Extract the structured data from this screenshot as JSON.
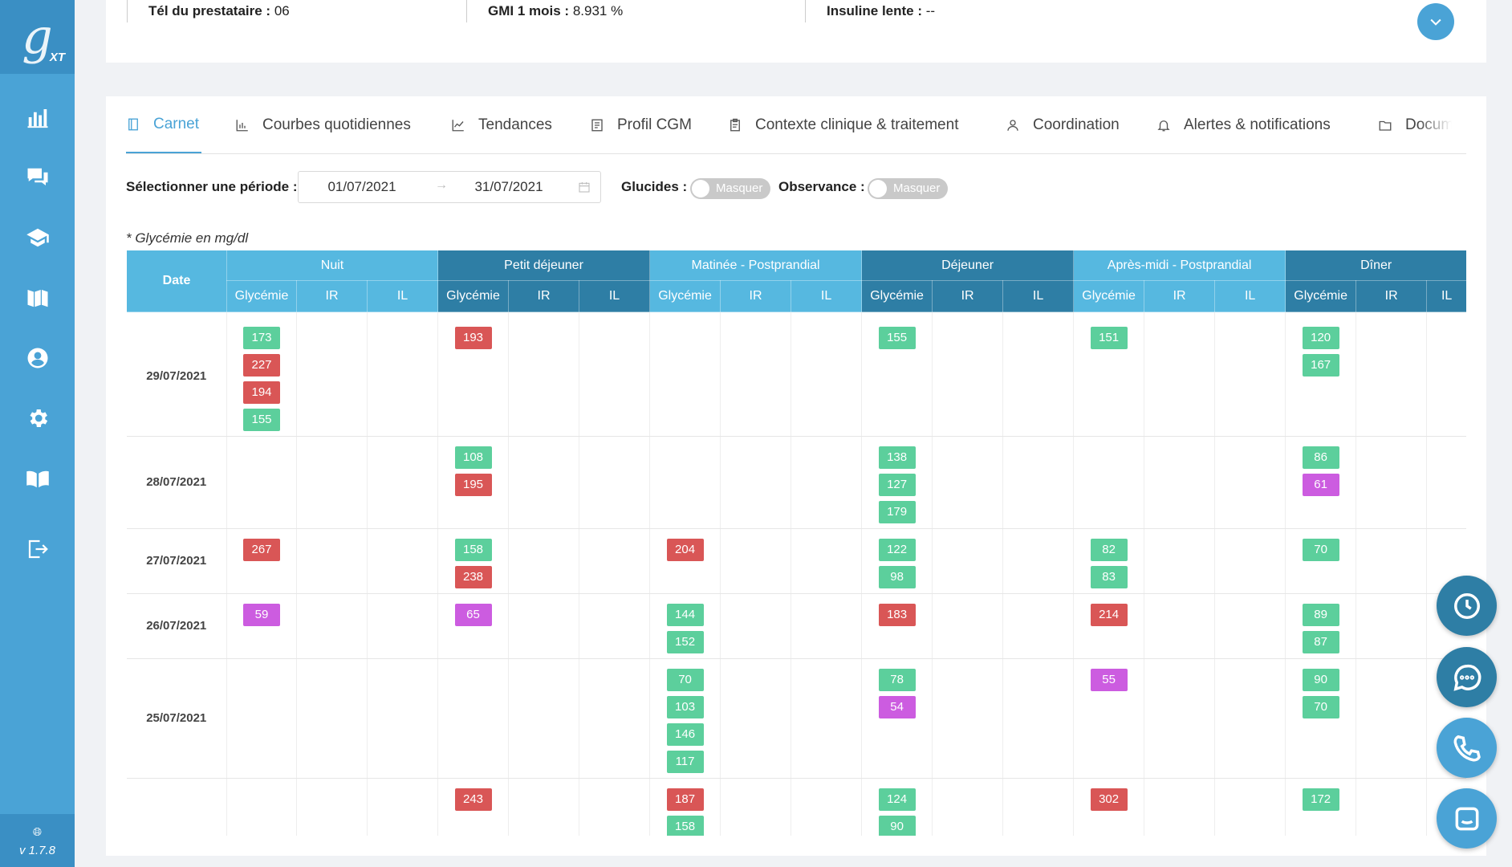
{
  "app": {
    "logo_letter": "g",
    "logo_suffix": "XT",
    "version": "v 1.7.8"
  },
  "sidebar": {
    "items": [
      {
        "icon": "bar-chart-icon"
      },
      {
        "icon": "chat-icon"
      },
      {
        "icon": "graduation-cap-icon"
      },
      {
        "icon": "library-icon"
      },
      {
        "icon": "user-circle-icon"
      },
      {
        "icon": "gear-icon"
      },
      {
        "icon": "book-open-icon"
      },
      {
        "icon": "logout-icon"
      }
    ]
  },
  "info": {
    "tel_label": "Tél du prestataire :",
    "tel_value": "06",
    "gmi_label": "GMI 1 mois :",
    "gmi_value": "8.931 %",
    "insulin_label": "Insuline lente :",
    "insulin_value": "--"
  },
  "tabs": [
    {
      "label": "Carnet",
      "icon": "notebook-icon",
      "active": true
    },
    {
      "label": "Courbes quotidiennes",
      "icon": "bar-chart-icon"
    },
    {
      "label": "Tendances",
      "icon": "line-chart-icon"
    },
    {
      "label": "Profil CGM",
      "icon": "list-icon"
    },
    {
      "label": "Contexte clinique & traitement",
      "icon": "clipboard-icon"
    },
    {
      "label": "Coordination",
      "icon": "user-icon"
    },
    {
      "label": "Alertes & notifications",
      "icon": "bell-icon"
    },
    {
      "label": "Documen",
      "icon": "folder-icon"
    }
  ],
  "filters": {
    "period_label": "Sélectionner une période :",
    "start_date": "01/07/2021",
    "end_date": "31/07/2021",
    "glucides_label": "Glucides :",
    "glucides_toggle": "Masquer",
    "observance_label": "Observance :",
    "observance_toggle": "Masquer"
  },
  "note": "* Glycémie en mg/dl",
  "colors": {
    "green": "#5ccf9c",
    "red": "#d95656",
    "purple": "#cc5ce0",
    "accent": "#4aa3d6",
    "header_dark": "#2e7ea5",
    "header_light": "#56b8e0"
  },
  "table": {
    "date_header": "Date",
    "groups": [
      "Nuit",
      "Petit déjeuner",
      "Matinée - Postprandial",
      "Déjeuner",
      "Après-midi - Postprandial",
      "Dîner"
    ],
    "sub_headers": [
      "Glycémie",
      "IR",
      "IL"
    ],
    "rows": [
      {
        "date": "29/07/2021",
        "values": [
          [
            {
              "v": "173",
              "c": "green"
            },
            {
              "v": "227",
              "c": "red"
            },
            {
              "v": "194",
              "c": "red"
            },
            {
              "v": "155",
              "c": "green"
            }
          ],
          [
            {
              "v": "193",
              "c": "red"
            }
          ],
          [],
          [
            {
              "v": "155",
              "c": "green"
            }
          ],
          [
            {
              "v": "151",
              "c": "green"
            }
          ],
          [
            {
              "v": "120",
              "c": "green"
            },
            {
              "v": "167",
              "c": "green"
            }
          ]
        ]
      },
      {
        "date": "28/07/2021",
        "values": [
          [],
          [
            {
              "v": "108",
              "c": "green"
            },
            {
              "v": "195",
              "c": "red"
            }
          ],
          [],
          [
            {
              "v": "138",
              "c": "green"
            },
            {
              "v": "127",
              "c": "green"
            },
            {
              "v": "179",
              "c": "green"
            }
          ],
          [],
          [
            {
              "v": "86",
              "c": "green"
            },
            {
              "v": "61",
              "c": "purple"
            }
          ]
        ]
      },
      {
        "date": "27/07/2021",
        "values": [
          [
            {
              "v": "267",
              "c": "red"
            }
          ],
          [
            {
              "v": "158",
              "c": "green"
            },
            {
              "v": "238",
              "c": "red"
            }
          ],
          [
            {
              "v": "204",
              "c": "red"
            }
          ],
          [
            {
              "v": "122",
              "c": "green"
            },
            {
              "v": "98",
              "c": "green"
            }
          ],
          [
            {
              "v": "82",
              "c": "green"
            },
            {
              "v": "83",
              "c": "green"
            }
          ],
          [
            {
              "v": "70",
              "c": "green"
            }
          ]
        ]
      },
      {
        "date": "26/07/2021",
        "values": [
          [
            {
              "v": "59",
              "c": "purple"
            }
          ],
          [
            {
              "v": "65",
              "c": "purple"
            }
          ],
          [
            {
              "v": "144",
              "c": "green"
            },
            {
              "v": "152",
              "c": "green"
            }
          ],
          [
            {
              "v": "183",
              "c": "red"
            }
          ],
          [
            {
              "v": "214",
              "c": "red"
            }
          ],
          [
            {
              "v": "89",
              "c": "green"
            },
            {
              "v": "87",
              "c": "green"
            }
          ]
        ]
      },
      {
        "date": "25/07/2021",
        "values": [
          [],
          [],
          [
            {
              "v": "70",
              "c": "green"
            },
            {
              "v": "103",
              "c": "green"
            },
            {
              "v": "146",
              "c": "green"
            },
            {
              "v": "117",
              "c": "green"
            }
          ],
          [
            {
              "v": "78",
              "c": "green"
            },
            {
              "v": "54",
              "c": "purple"
            }
          ],
          [
            {
              "v": "55",
              "c": "purple"
            }
          ],
          [
            {
              "v": "90",
              "c": "green"
            },
            {
              "v": "70",
              "c": "green"
            }
          ]
        ]
      },
      {
        "date": "",
        "values": [
          [],
          [
            {
              "v": "243",
              "c": "red"
            }
          ],
          [
            {
              "v": "187",
              "c": "red"
            },
            {
              "v": "158",
              "c": "green"
            }
          ],
          [
            {
              "v": "124",
              "c": "green"
            },
            {
              "v": "90",
              "c": "green"
            }
          ],
          [
            {
              "v": "302",
              "c": "red"
            }
          ],
          [
            {
              "v": "172",
              "c": "green"
            }
          ]
        ]
      }
    ]
  },
  "fabs": [
    {
      "icon": "clock-icon"
    },
    {
      "icon": "chat-bubble-icon"
    },
    {
      "icon": "phone-icon"
    },
    {
      "icon": "intercom-icon"
    }
  ]
}
